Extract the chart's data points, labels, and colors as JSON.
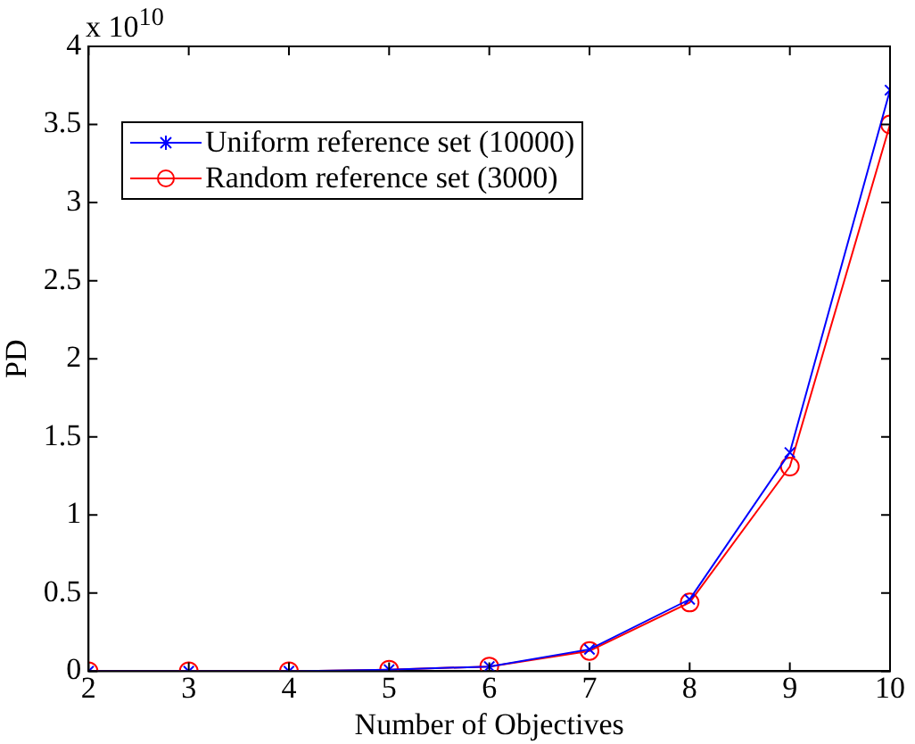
{
  "chart_data": {
    "type": "line",
    "xlabel": "Number of Objectives",
    "ylabel": "PD",
    "annotations": [
      "x 10$^{10}$"
    ],
    "x": [
      2,
      3,
      4,
      5,
      6,
      7,
      8,
      9,
      10
    ],
    "series": [
      {
        "name": "Uniform reference set (10000)",
        "color": "#0000ff",
        "marker": "cross",
        "values": [
          0,
          0,
          0,
          0.01,
          0.03,
          0.14,
          0.46,
          1.4,
          3.72
        ]
      },
      {
        "name": "Random reference set (3000)",
        "color": "#ff0000",
        "marker": "circle",
        "values": [
          0,
          0,
          0,
          0.01,
          0.03,
          0.13,
          0.44,
          1.31,
          3.5
        ]
      }
    ],
    "xlim": [
      2,
      10
    ],
    "xticks": [
      2,
      3,
      4,
      5,
      6,
      7,
      8,
      9,
      10
    ],
    "ylim": [
      0,
      4
    ],
    "yticks": [
      0,
      0.5,
      1,
      1.5,
      2,
      2.5,
      3,
      3.5,
      4
    ],
    "grid": false,
    "legend": "top left"
  }
}
